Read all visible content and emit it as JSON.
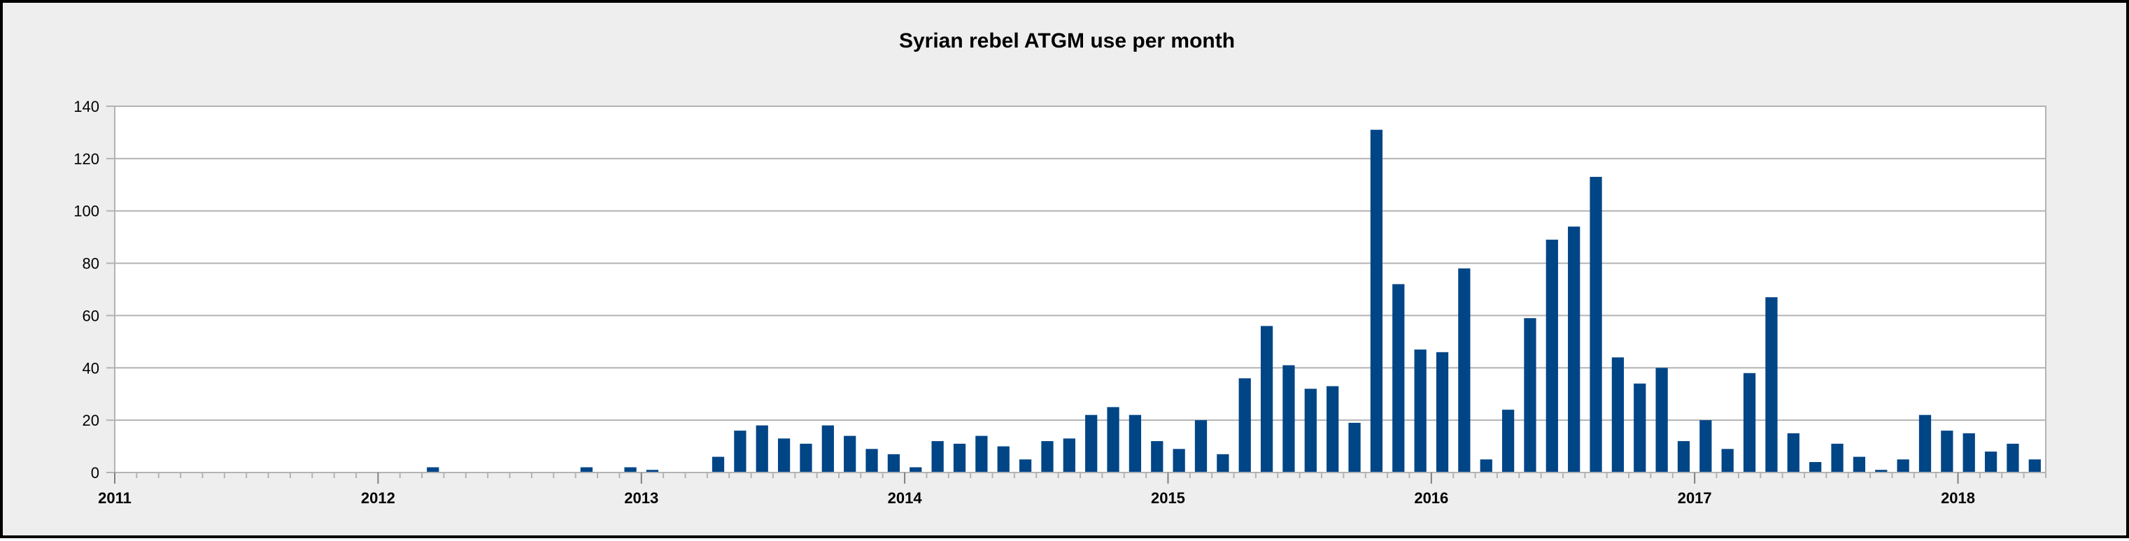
{
  "chart_data": {
    "type": "bar",
    "title": "Syrian rebel ATGM use per month",
    "xlabel": "",
    "ylabel": "",
    "ylim": [
      0,
      140
    ],
    "yticks": [
      0,
      20,
      40,
      60,
      80,
      100,
      120,
      140
    ],
    "x_tick_labels": [
      "2011",
      "2012",
      "2013",
      "2014",
      "2015",
      "2016",
      "2017",
      "2018"
    ],
    "grid": true,
    "legend": "none",
    "bar_color": "#004586",
    "background_color": "#eeeeee",
    "plot_background_color": "#ffffff",
    "series": [
      {
        "values": [
          0,
          0,
          0,
          0,
          0,
          0,
          0,
          0,
          0,
          0,
          0,
          0,
          0,
          0,
          2,
          0,
          0,
          0,
          0,
          0,
          0,
          2,
          0,
          2,
          1,
          0,
          0,
          6,
          16,
          18,
          13,
          11,
          18,
          14,
          9,
          7,
          2,
          12,
          11,
          14,
          10,
          5,
          12,
          13,
          22,
          25,
          22,
          12,
          9,
          20,
          7,
          36,
          56,
          41,
          32,
          33,
          19,
          131,
          72,
          47,
          46,
          78,
          5,
          24,
          59,
          89,
          94,
          113,
          44,
          34,
          40,
          12,
          20,
          9,
          38,
          67,
          15,
          4,
          11,
          6,
          1,
          5,
          22,
          16,
          15,
          8,
          11,
          5
        ]
      }
    ]
  }
}
